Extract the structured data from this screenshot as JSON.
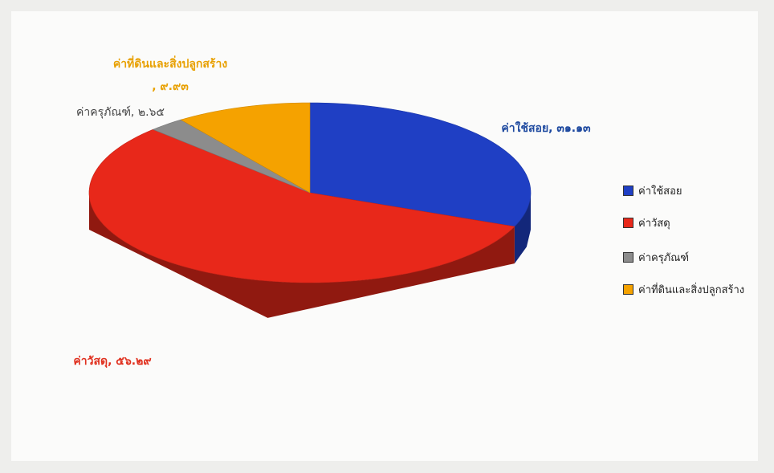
{
  "chart_data": {
    "type": "pie3d",
    "categories": [
      "ค่าใช้สอย",
      "ค่าวัสดุ",
      "ค่าครุภัณฑ์",
      "ค่าที่ดินและสิ่งปลูกสร้าง"
    ],
    "values": [
      31.13,
      56.29,
      2.65,
      9.93
    ],
    "value_labels": [
      "ค่าใช้สอย, ๓๑.๑๓",
      "ค่าวัสดุ, ๕๖.๒๙",
      "ค่าครุภัณฑ์, ๒.๖๕",
      "ค่าที่ดินและสิ่งปลูกสร้าง\n, ๙.๙๓"
    ],
    "colors": [
      "#1f3fc4",
      "#e8281a",
      "#8c8c8c",
      "#f5a200"
    ],
    "legend": "right"
  }
}
